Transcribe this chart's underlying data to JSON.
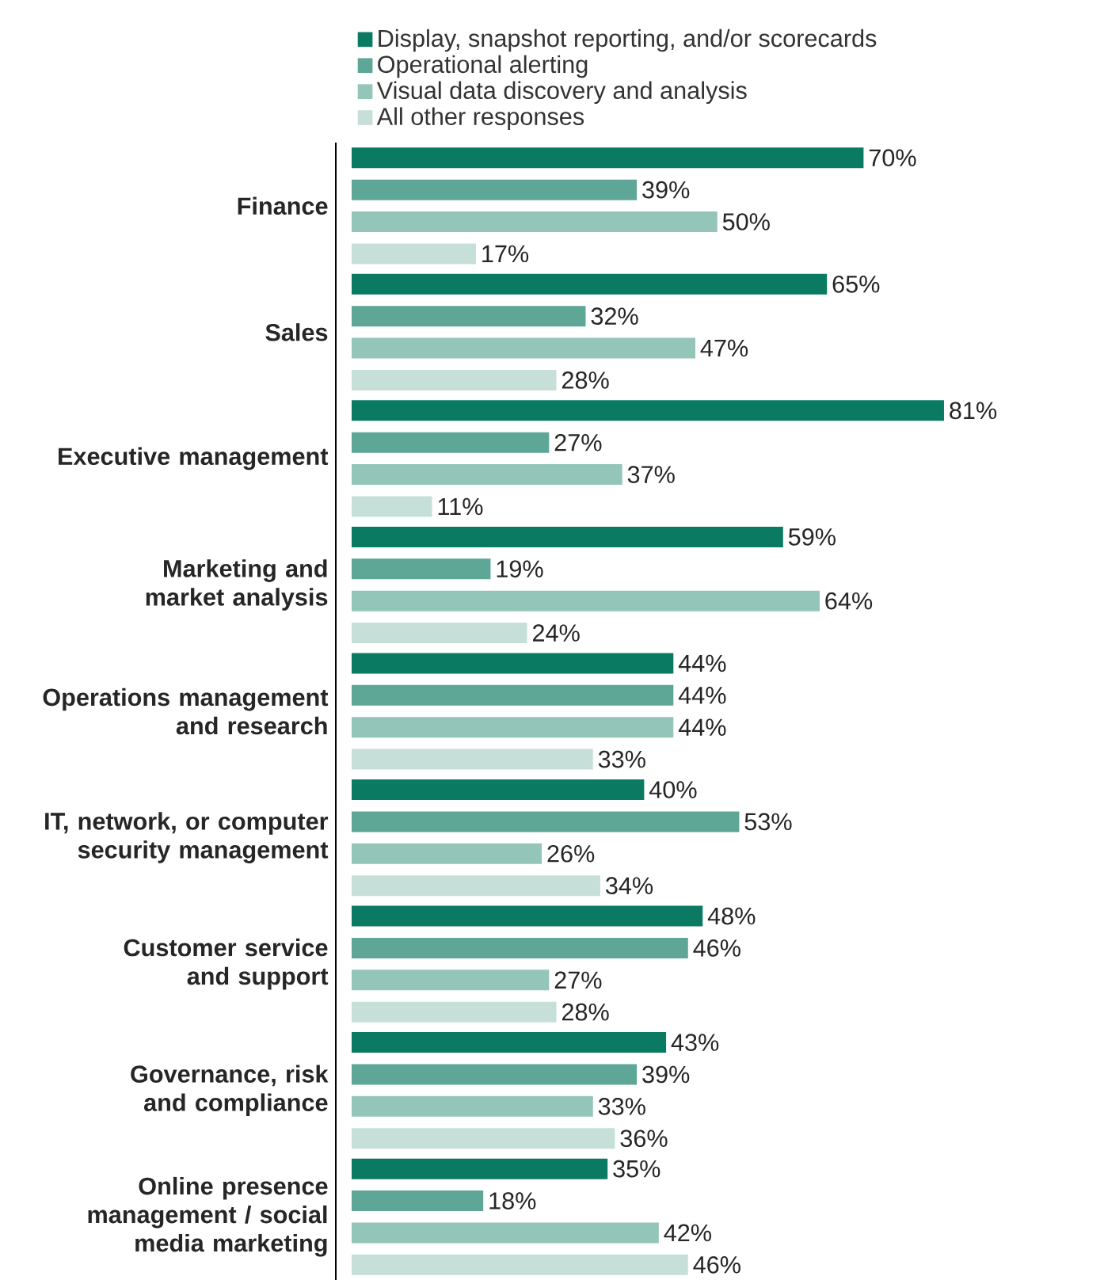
{
  "chart_data": {
    "type": "bar",
    "orientation": "horizontal",
    "data_labels": true,
    "legend": "top left",
    "categories": [
      "Finance",
      "Sales",
      "Executive management",
      "Marketing and market analysis",
      "Operations management and research",
      "IT, network, or computer security management",
      "Customer service and support",
      "Governance, risk and compliance",
      "Online presence management / social media marketing"
    ],
    "series": [
      {
        "name": "Display, snapshot reporting, and/or scorecards",
        "color": "#0b7a62",
        "values": [
          70,
          65,
          81,
          59,
          44,
          40,
          48,
          43,
          35
        ],
        "value_labels": [
          "70%",
          "65%",
          "81%",
          "59%",
          "44%",
          "40%",
          "48%",
          "43%",
          "35%"
        ]
      },
      {
        "name": "Operational alerting",
        "color": "#5ea797",
        "values": [
          39,
          32,
          27,
          19,
          44,
          53,
          46,
          39,
          18
        ],
        "value_labels": [
          "39%",
          "32%",
          "27%",
          "19%",
          "44%",
          "53%",
          "46%",
          "39%",
          "18%"
        ]
      },
      {
        "name": "Visual data discovery and analysis",
        "color": "#93c5b8",
        "values": [
          50,
          47,
          37,
          64,
          44,
          26,
          27,
          33,
          42
        ],
        "value_labels": [
          "50%",
          "47%",
          "37%",
          "64%",
          "44%",
          "26%",
          "27%",
          "33%",
          "42%"
        ]
      },
      {
        "name": "All other responses",
        "color": "#c6e0d9",
        "values": [
          17,
          28,
          11,
          24,
          33,
          34,
          28,
          36,
          46
        ],
        "value_labels": [
          "17%",
          "28%",
          "11%",
          "24%",
          "33%",
          "34%",
          "28%",
          "36%",
          "46%"
        ]
      }
    ]
  }
}
